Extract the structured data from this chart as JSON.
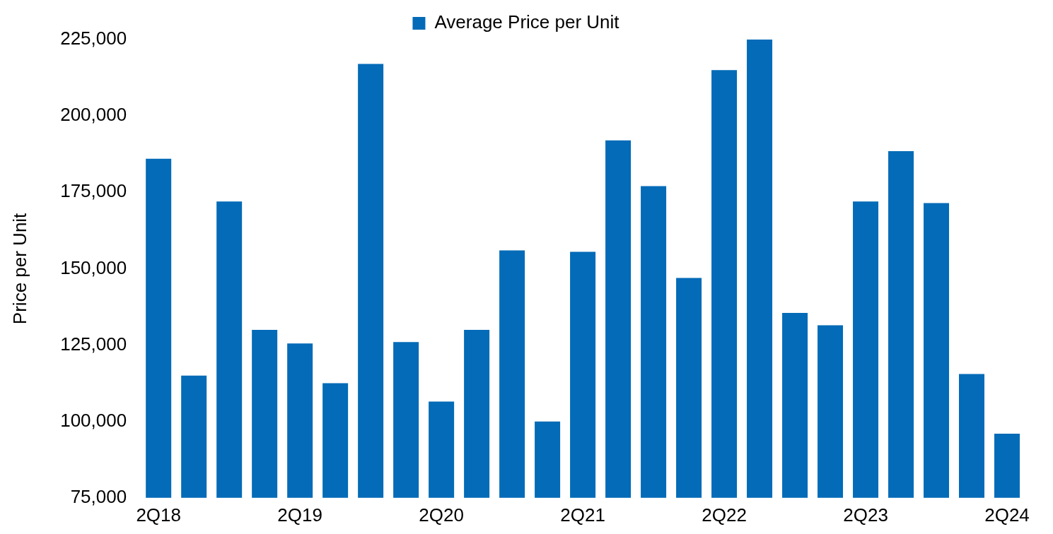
{
  "chart_data": {
    "type": "bar",
    "ylabel": "Price per Unit",
    "categories": [
      "2Q18",
      null,
      null,
      null,
      "2Q19",
      null,
      null,
      null,
      "2Q20",
      null,
      null,
      null,
      "2Q21",
      null,
      null,
      null,
      "2Q22",
      null,
      null,
      null,
      "2Q23",
      null,
      null,
      null,
      "2Q24"
    ],
    "series": [
      {
        "name": "Average Price per Unit",
        "color": "#036bb7",
        "values": [
          186000,
          115000,
          172000,
          130000,
          125500,
          112500,
          217000,
          126000,
          106500,
          130000,
          156000,
          100000,
          155500,
          192000,
          177000,
          147000,
          215000,
          225000,
          135500,
          131500,
          172000,
          188500,
          171500,
          115500,
          96000
        ]
      }
    ],
    "ylim": [
      75000,
      225000
    ],
    "yticks": [
      {
        "value": 75000,
        "label": "75,000"
      },
      {
        "value": 100000,
        "label": "100,000"
      },
      {
        "value": 125000,
        "label": "125,000"
      },
      {
        "value": 150000,
        "label": "150,000"
      },
      {
        "value": 175000,
        "label": "175,000"
      },
      {
        "value": 200000,
        "label": "200,000"
      },
      {
        "value": 225000,
        "label": "225,000"
      }
    ],
    "grid": false,
    "legend": "top"
  }
}
